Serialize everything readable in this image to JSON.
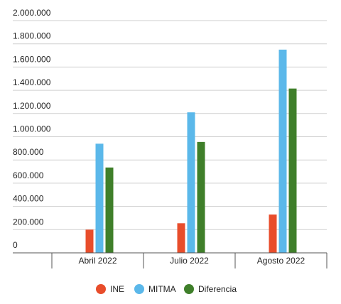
{
  "chart_data": {
    "type": "bar",
    "categories": [
      "Abril 2022",
      "Julio 2022",
      "Agosto 2022"
    ],
    "series": [
      {
        "name": "INE",
        "color": "#E84D2B",
        "values": [
          200000,
          255000,
          330000
        ]
      },
      {
        "name": "MITMA",
        "color": "#5BB8EA",
        "values": [
          940000,
          1210000,
          1750000
        ]
      },
      {
        "name": "Diferencia",
        "color": "#3F7F2A",
        "values": [
          735000,
          955000,
          1415000
        ]
      }
    ],
    "ylim": [
      0,
      2000000
    ],
    "yticks": [
      {
        "value": 0,
        "label": "0"
      },
      {
        "value": 200000,
        "label": "200.000"
      },
      {
        "value": 400000,
        "label": "400.000"
      },
      {
        "value": 600000,
        "label": "600.000"
      },
      {
        "value": 800000,
        "label": "800.000"
      },
      {
        "value": 1000000,
        "label": "1.000.000"
      },
      {
        "value": 1200000,
        "label": "1.200.000"
      },
      {
        "value": 1400000,
        "label": "1.400.000"
      },
      {
        "value": 1600000,
        "label": "1.600.000"
      },
      {
        "value": 1800000,
        "label": "1.800.000"
      },
      {
        "value": 2000000,
        "label": "2.000.000"
      }
    ],
    "grid": true,
    "legend_position": "bottom"
  }
}
